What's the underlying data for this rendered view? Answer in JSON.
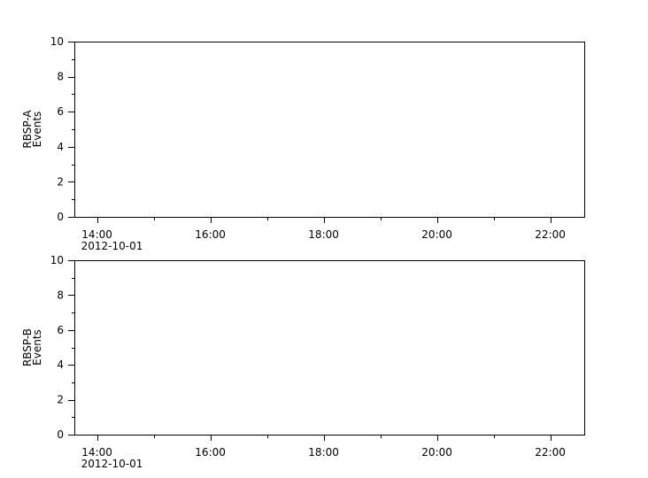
{
  "chart_data": [
    {
      "type": "line",
      "ylabel": [
        "RBSP-A",
        "Events"
      ],
      "xlim": [
        "2012-10-01 13:36",
        "2012-10-01 22:36"
      ],
      "ylim": [
        0,
        10
      ],
      "yticks": [
        "0",
        "2",
        "4",
        "6",
        "8",
        "10"
      ],
      "xticks": [
        "14:00",
        "16:00",
        "18:00",
        "20:00",
        "22:00"
      ],
      "xtick_date": "2012-10-01",
      "series": [],
      "grid": false
    },
    {
      "type": "line",
      "ylabel": [
        "RBSP-B",
        "Events"
      ],
      "xlim": [
        "2012-10-01 13:36",
        "2012-10-01 22:36"
      ],
      "ylim": [
        0,
        10
      ],
      "yticks": [
        "0",
        "2",
        "4",
        "6",
        "8",
        "10"
      ],
      "xticks": [
        "14:00",
        "16:00",
        "18:00",
        "20:00",
        "22:00"
      ],
      "xtick_date": "2012-10-01",
      "series": [],
      "grid": false
    }
  ]
}
